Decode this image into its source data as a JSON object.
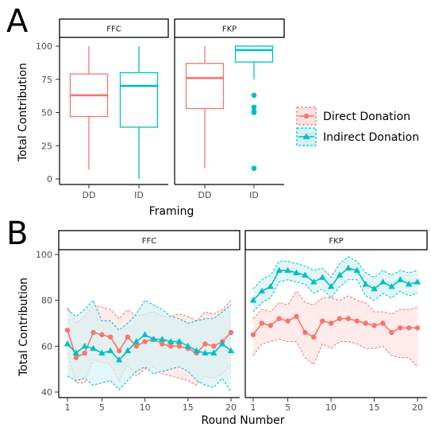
{
  "colors": {
    "direct": "#f8766d",
    "indirect": "#00bfc4",
    "direct_fill": "#fde3e1",
    "indirect_fill": "#d6f2f3"
  },
  "legend": {
    "entries": [
      "Direct Donation",
      "Indirect Donation"
    ],
    "placement": "right"
  },
  "chart_data": [
    {
      "panel": "A",
      "type": "boxplot",
      "facets": [
        "FFC",
        "FKP"
      ],
      "categories": [
        "DD",
        "ID"
      ],
      "xlabel": "Framing",
      "ylabel": "Total Contribution",
      "ylim": [
        0,
        100
      ],
      "yticks": [
        0,
        25,
        50,
        75,
        100
      ],
      "boxes": [
        {
          "facet": "FFC",
          "category": "DD",
          "series": "Direct Donation",
          "min": 7,
          "q1": 47,
          "median": 63,
          "q3": 79,
          "max": 100,
          "outliers": []
        },
        {
          "facet": "FFC",
          "category": "ID",
          "series": "Indirect Donation",
          "min": 0,
          "q1": 39,
          "median": 70,
          "q3": 80,
          "max": 100,
          "outliers": []
        },
        {
          "facet": "FKP",
          "category": "DD",
          "series": "Direct Donation",
          "min": 8,
          "q1": 53,
          "median": 76,
          "q3": 87,
          "max": 100,
          "outliers": []
        },
        {
          "facet": "FKP",
          "category": "ID",
          "series": "Indirect Donation",
          "min": 75,
          "q1": 88,
          "median": 97,
          "q3": 100,
          "max": 100,
          "outliers": [
            63,
            54,
            51,
            50,
            8
          ]
        }
      ]
    },
    {
      "panel": "B",
      "type": "line",
      "facets": [
        "FFC",
        "FKP"
      ],
      "xlabel": "Round Number",
      "ylabel": "Total Contribution",
      "x": [
        1,
        2,
        3,
        4,
        5,
        6,
        7,
        8,
        9,
        10,
        11,
        12,
        13,
        14,
        15,
        16,
        17,
        18,
        19,
        20
      ],
      "xticks": [
        1,
        5,
        10,
        15,
        20
      ],
      "ylim": [
        38,
        104
      ],
      "yticks": [
        40,
        60,
        80,
        100
      ],
      "series": [
        {
          "facet": "FFC",
          "name": "Direct Donation",
          "values": [
            67,
            55,
            57,
            66,
            65,
            64,
            58,
            64,
            60,
            62,
            63,
            61,
            60,
            60,
            59,
            57,
            61,
            60,
            62,
            66
          ],
          "upper": [
            77,
            70,
            73,
            78,
            77,
            76,
            72,
            76,
            73,
            74,
            75,
            73,
            73,
            74,
            73,
            71,
            75,
            74,
            76,
            80
          ],
          "lower": [
            57,
            44,
            44,
            54,
            53,
            52,
            45,
            52,
            47,
            50,
            51,
            48,
            47,
            46,
            45,
            43,
            47,
            46,
            48,
            52
          ]
        },
        {
          "facet": "FFC",
          "name": "Indirect Donation",
          "values": [
            61,
            57,
            60,
            59,
            57,
            58,
            54,
            58,
            62,
            65,
            63,
            63,
            62,
            62,
            60,
            58,
            57,
            57,
            61,
            58
          ],
          "upper": [
            76,
            73,
            76,
            80,
            71,
            71,
            67,
            70,
            74,
            80,
            78,
            76,
            73,
            72,
            70,
            71,
            72,
            72,
            75,
            78
          ],
          "lower": [
            47,
            45,
            46,
            43,
            44,
            45,
            41,
            45,
            49,
            51,
            48,
            49,
            50,
            51,
            49,
            45,
            43,
            42,
            46,
            40
          ]
        },
        {
          "facet": "FKP",
          "name": "Direct Donation",
          "values": [
            65,
            70,
            69,
            72,
            71,
            73,
            66,
            64,
            71,
            70,
            72,
            72,
            71,
            70,
            69,
            70,
            66,
            68,
            68,
            68
          ],
          "upper": [
            72,
            76,
            75,
            79,
            78,
            84,
            79,
            78,
            81,
            81,
            80,
            82,
            80,
            79,
            75,
            75,
            74,
            76,
            76,
            77
          ],
          "lower": [
            56,
            61,
            62,
            63,
            62,
            62,
            55,
            52,
            61,
            59,
            62,
            62,
            61,
            59,
            59,
            60,
            56,
            55,
            55,
            51
          ]
        },
        {
          "facet": "FKP",
          "name": "Indirect Donation",
          "values": [
            80,
            84,
            86,
            93,
            93,
            92,
            91,
            88,
            90,
            86,
            91,
            94,
            93,
            87,
            85,
            88,
            86,
            89,
            87,
            88
          ],
          "upper": [
            85,
            89,
            91,
            97,
            97,
            96,
            95,
            93,
            94,
            90,
            96,
            99,
            97,
            92,
            90,
            93,
            91,
            93,
            92,
            93
          ],
          "lower": [
            75,
            79,
            81,
            88,
            89,
            88,
            87,
            83,
            85,
            81,
            86,
            89,
            89,
            82,
            80,
            83,
            81,
            84,
            82,
            83
          ]
        }
      ]
    }
  ],
  "text": {
    "panel_a_letter": "A",
    "panel_b_letter": "B",
    "a_strip_left": "FFC",
    "a_strip_right": "FKP",
    "b_strip_left": "FFC",
    "b_strip_right": "FKP",
    "a_ylabel": "Total Contribution",
    "a_xlabel": "Framing",
    "b_ylabel": "Total Contribution",
    "b_xlabel": "Round Number",
    "legend_direct": "Direct Donation",
    "legend_indirect": "Indirect Donation"
  }
}
